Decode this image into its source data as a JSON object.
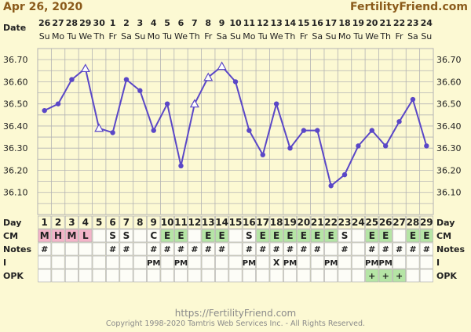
{
  "header": {
    "date": "Apr 26, 2020",
    "site": "FertilityFriend.com"
  },
  "footer": {
    "url": "https://FertilityFriend.com",
    "copyright": "Copyright 1998-2020 Tamtris Web Services Inc. - All Rights Reserved."
  },
  "row_labels": {
    "date": "Date",
    "day": "Day",
    "cm": "CM",
    "notes": "Notes",
    "i": "I",
    "opk": "OPK"
  },
  "colors": {
    "background": "#fcf9d3",
    "grid": "#b3b3b3",
    "line": "#5a47c7",
    "header_text": "#8a5a1a",
    "cm_menstrual": "#f3b4c8",
    "cm_egg_white": "#b5e5a5",
    "opk_positive": "#b5e5a5",
    "cell_bg": "#fdfdf7"
  },
  "chart_data": {
    "type": "line",
    "title": "",
    "xlabel": "",
    "ylabel": "",
    "ylim": [
      36.0,
      36.75
    ],
    "y_ticks": [
      "36.70",
      "36.60",
      "36.50",
      "36.40",
      "36.30",
      "36.20",
      "36.10"
    ],
    "dates": [
      "26",
      "27",
      "28",
      "29",
      "30",
      "1",
      "2",
      "3",
      "4",
      "5",
      "6",
      "7",
      "8",
      "9",
      "10",
      "11",
      "12",
      "13",
      "14",
      "15",
      "16",
      "17",
      "18",
      "19",
      "20",
      "21",
      "22",
      "23",
      "24"
    ],
    "weekdays": [
      "Su",
      "Mo",
      "Tu",
      "We",
      "Th",
      "Fr",
      "Sa",
      "Su",
      "Mo",
      "Tu",
      "We",
      "Th",
      "Fr",
      "Sa",
      "Su",
      "Mo",
      "Tu",
      "We",
      "Th",
      "Fr",
      "Sa",
      "Su",
      "Mo",
      "Tu",
      "We",
      "Th",
      "Fr",
      "Sa",
      "Su"
    ],
    "days": [
      "1",
      "2",
      "3",
      "4",
      "5",
      "6",
      "7",
      "8",
      "9",
      "10",
      "11",
      "12",
      "13",
      "14",
      "15",
      "16",
      "17",
      "18",
      "19",
      "20",
      "21",
      "22",
      "23",
      "24",
      "25",
      "26",
      "27",
      "28",
      "29"
    ],
    "series": [
      {
        "values": [
          36.47,
          36.5,
          36.61,
          36.66,
          36.39,
          36.37,
          36.61,
          36.56,
          36.38,
          36.5,
          36.22,
          36.5,
          36.62,
          36.67,
          36.6,
          36.38,
          36.27,
          36.5,
          36.3,
          36.38,
          36.38,
          36.13,
          36.18,
          36.31,
          36.38,
          36.31,
          36.42,
          36.52,
          36.31
        ],
        "markers": [
          "dot",
          "dot",
          "dot",
          "triangle",
          "triangle",
          "dot",
          "dot",
          "dot",
          "dot",
          "dot",
          "dot",
          "triangle",
          "triangle",
          "triangle",
          "dot",
          "dot",
          "dot",
          "dot",
          "dot",
          "dot",
          "dot",
          "dot",
          "dot",
          "dot",
          "dot",
          "dot",
          "dot",
          "dot",
          "dot"
        ]
      }
    ],
    "cm": [
      "M",
      "H",
      "M",
      "L",
      "",
      "S",
      "S",
      "",
      "C",
      "E",
      "E",
      "",
      "E",
      "E",
      "",
      "S",
      "E",
      "E",
      "E",
      "E",
      "E",
      "E",
      "S",
      "",
      "E",
      "E",
      "",
      "E",
      "E"
    ],
    "notes": [
      "#",
      "",
      "",
      "",
      "",
      "#",
      "#",
      "",
      "#",
      "#",
      "#",
      "#",
      "#",
      "#",
      "",
      "#",
      "#",
      "#",
      "#",
      "#",
      "#",
      "",
      "#",
      "",
      "#",
      "#",
      "#",
      "#",
      "#"
    ],
    "intercourse": [
      "",
      "",
      "",
      "",
      "",
      "",
      "",
      "",
      "PM",
      "",
      "PM",
      "",
      "",
      "",
      "",
      "PM",
      "",
      "X",
      "PM",
      "",
      "",
      "PM",
      "",
      "",
      "PM",
      "PM",
      "",
      "",
      ""
    ],
    "opk": [
      "",
      "",
      "",
      "",
      "",
      "",
      "",
      "",
      "",
      "",
      "",
      "",
      "",
      "",
      "",
      "",
      "",
      "",
      "",
      "",
      "",
      "",
      "",
      "",
      "+",
      "+",
      "+",
      "",
      ""
    ]
  }
}
